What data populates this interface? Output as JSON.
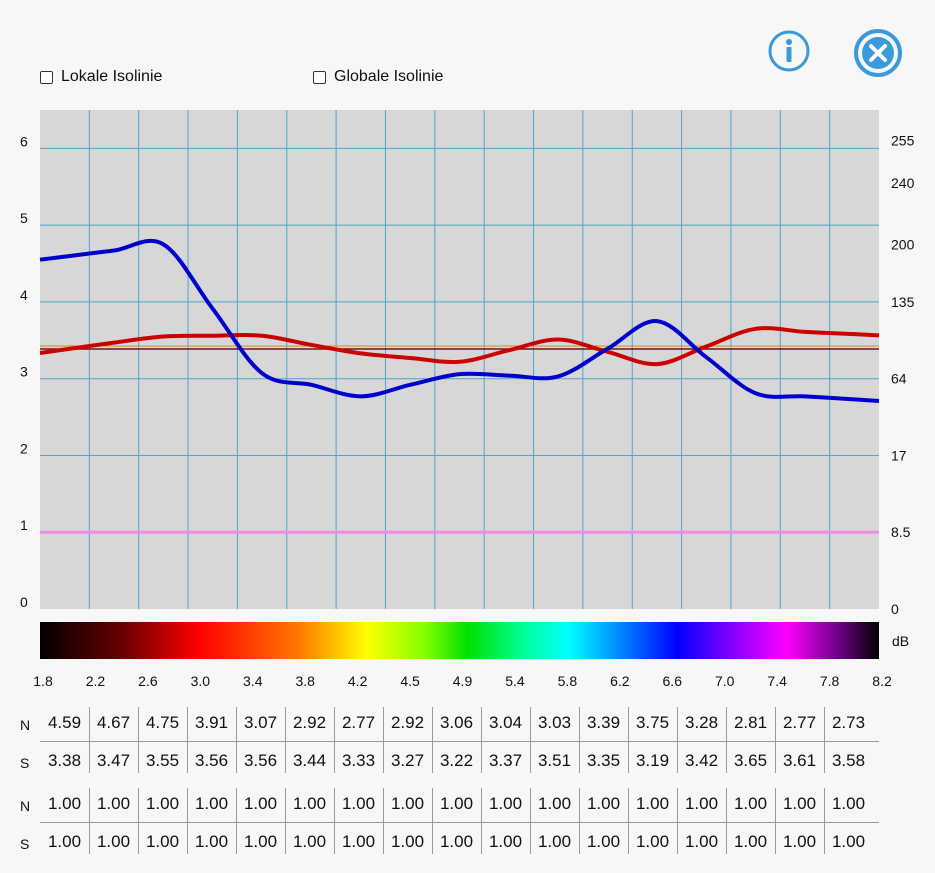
{
  "controls": {
    "local_label": "Lokale Isolinie",
    "global_label": "Globale Isolinie",
    "info_icon": "info-icon",
    "close_icon": "close-icon"
  },
  "colors": {
    "plot_bg": "#d7d7d7",
    "grid": "#4aa7cf",
    "series_n": "#0000cc",
    "series_s": "#cc0000",
    "pink_line": "#f08be8",
    "icon": "#3b9ad9"
  },
  "chart_data": {
    "type": "line",
    "x": [
      1.8,
      2.2,
      2.6,
      3.0,
      3.4,
      3.8,
      4.2,
      4.5,
      4.9,
      5.4,
      5.8,
      6.2,
      6.6,
      7.0,
      7.4,
      7.8,
      8.2
    ],
    "series": [
      {
        "name": "N",
        "values": [
          4.59,
          4.67,
          4.75,
          3.91,
          3.07,
          2.92,
          2.77,
          2.92,
          3.06,
          3.04,
          3.03,
          3.39,
          3.75,
          3.28,
          2.81,
          2.77,
          2.73
        ]
      },
      {
        "name": "S",
        "values": [
          3.38,
          3.47,
          3.55,
          3.56,
          3.56,
          3.44,
          3.33,
          3.27,
          3.22,
          3.37,
          3.51,
          3.35,
          3.19,
          3.42,
          3.65,
          3.61,
          3.58
        ]
      }
    ],
    "y_ticks_left": [
      "0",
      "1",
      "2",
      "3",
      "4",
      "5",
      "6"
    ],
    "y_ticks_right": [
      "0",
      "8.5",
      "17",
      "64",
      "135",
      "200",
      "240",
      "255"
    ],
    "color_scale_unit": "dB",
    "color_scale_ticks": [
      "1.8",
      "2.2",
      "2.6",
      "3.0",
      "3.4",
      "3.8",
      "4.2",
      "4.5",
      "4.9",
      "5.4",
      "5.8",
      "6.2",
      "6.6",
      "7.0",
      "7.4",
      "7.8",
      "8.2"
    ],
    "horizontal_lines": [
      {
        "value": 3.4,
        "color": "#b02020"
      },
      {
        "value": 1.0,
        "color": "#f08be8"
      }
    ],
    "ylim": [
      0,
      6.5
    ],
    "grid": true
  },
  "table1": {
    "row_labels": [
      "N",
      "S"
    ],
    "rows": [
      [
        "4.59",
        "4.67",
        "4.75",
        "3.91",
        "3.07",
        "2.92",
        "2.77",
        "2.92",
        "3.06",
        "3.04",
        "3.03",
        "3.39",
        "3.75",
        "3.28",
        "2.81",
        "2.77",
        "2.73"
      ],
      [
        "3.38",
        "3.47",
        "3.55",
        "3.56",
        "3.56",
        "3.44",
        "3.33",
        "3.27",
        "3.22",
        "3.37",
        "3.51",
        "3.35",
        "3.19",
        "3.42",
        "3.65",
        "3.61",
        "3.58"
      ]
    ]
  },
  "table2": {
    "row_labels": [
      "N",
      "S"
    ],
    "rows": [
      [
        "1.00",
        "1.00",
        "1.00",
        "1.00",
        "1.00",
        "1.00",
        "1.00",
        "1.00",
        "1.00",
        "1.00",
        "1.00",
        "1.00",
        "1.00",
        "1.00",
        "1.00",
        "1.00",
        "1.00"
      ],
      [
        "1.00",
        "1.00",
        "1.00",
        "1.00",
        "1.00",
        "1.00",
        "1.00",
        "1.00",
        "1.00",
        "1.00",
        "1.00",
        "1.00",
        "1.00",
        "1.00",
        "1.00",
        "1.00",
        "1.00"
      ]
    ]
  }
}
